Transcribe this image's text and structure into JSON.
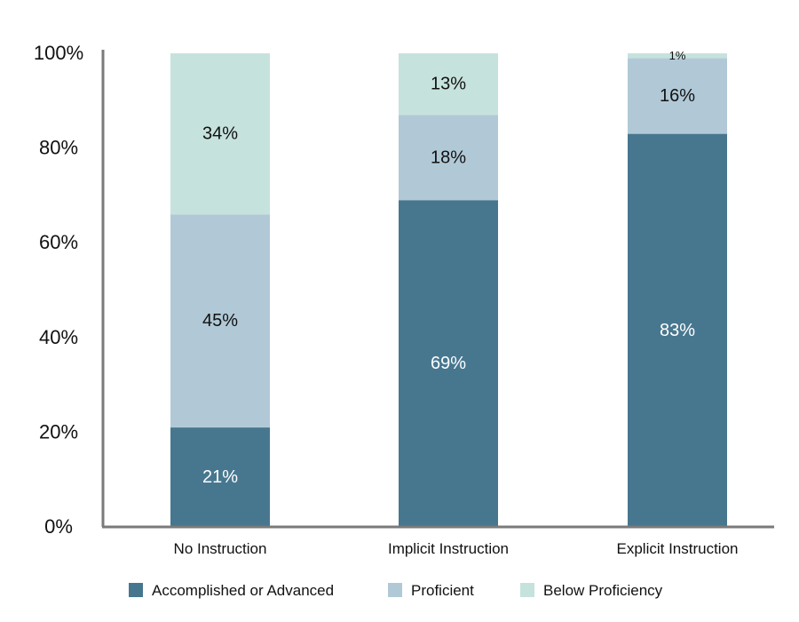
{
  "chart_data": {
    "type": "bar",
    "stacked": true,
    "categories": [
      "No Instruction",
      "Implicit Instruction",
      "Explicit Instruction"
    ],
    "series": [
      {
        "name": "Accomplished or Advanced",
        "values": [
          21,
          69,
          83
        ],
        "color": "#47778f",
        "label_color": "#ffffff"
      },
      {
        "name": "Proficient",
        "values": [
          45,
          18,
          16
        ],
        "color": "#b1c9d7",
        "label_color": "#111111"
      },
      {
        "name": "Below Proficiency",
        "values": [
          34,
          13,
          1
        ],
        "color": "#c6e2dc",
        "label_color": "#111111"
      }
    ],
    "segment_labels": [
      [
        "21%",
        "45%",
        "34%"
      ],
      [
        "69%",
        "18%",
        "13%"
      ],
      [
        "83%",
        "16%",
        "1%"
      ]
    ],
    "ylim": [
      0,
      100
    ],
    "yticks": [
      0,
      20,
      40,
      60,
      80,
      100
    ],
    "ytick_labels": [
      "0%",
      "20%",
      "40%",
      "60%",
      "80%",
      "100%"
    ],
    "title": "",
    "xlabel": "",
    "ylabel": "",
    "grid": false,
    "legend_position": "bottom",
    "axis_color": "#7a7a7a"
  }
}
